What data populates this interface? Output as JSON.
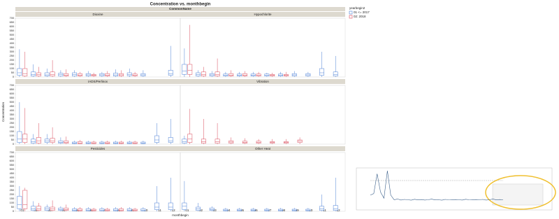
{
  "chart_data": [
    {
      "type": "box",
      "title": "Concentration vs. monthbegin",
      "header": "CommonName",
      "x_label": "monthbegin",
      "y_label": "Concentration",
      "categories": [
        "01",
        "02",
        "03",
        "04",
        "05",
        "06",
        "07",
        "08",
        "09",
        "10",
        "11",
        "12"
      ],
      "ylim": [
        0,
        700
      ],
      "yticks": [
        0,
        50,
        100,
        150,
        200,
        250,
        300,
        350,
        400,
        450,
        500,
        550,
        600,
        650,
        700
      ],
      "legend_title": "yearbegin2",
      "series": [
        {
          "name": "01 <= 2017",
          "color": "#4a7fd6"
        },
        {
          "name": "02: 2018",
          "color": "#d94a5a"
        }
      ],
      "panels": [
        {
          "title": "Dioxine",
          "series": [
            {
              "values": [
                [
                  0,
                  20,
                  50,
                  100,
                  330
                ],
                [
                  0,
                  10,
                  30,
                  60,
                  150
                ],
                [
                  0,
                  10,
                  25,
                  50,
                  100
                ],
                [
                  0,
                  10,
                  30,
                  45,
                  80
                ],
                [
                  0,
                  10,
                  30,
                  50,
                  80
                ],
                [
                  0,
                  10,
                  25,
                  40,
                  70
                ],
                [
                  0,
                  10,
                  25,
                  40,
                  60
                ],
                [
                  0,
                  10,
                  25,
                  45,
                  90
                ],
                [
                  0,
                  15,
                  30,
                  50,
                  100
                ],
                [
                  0,
                  10,
                  25,
                  40,
                  80
                ],
                null,
                [
                  0,
                  20,
                  40,
                  80,
                  370
                ]
              ]
            },
            {
              "values": [
                [
                  0,
                  10,
                  40,
                  100,
                  300
                ],
                [
                  0,
                  10,
                  30,
                  50,
                  120
                ],
                [
                  0,
                  10,
                  30,
                  60,
                  200
                ],
                [
                  0,
                  10,
                  20,
                  40,
                  90
                ],
                [
                  0,
                  10,
                  20,
                  40,
                  60
                ],
                [
                  0,
                  10,
                  20,
                  30,
                  50
                ],
                [
                  0,
                  10,
                  20,
                  40,
                  70
                ],
                [
                  0,
                  10,
                  25,
                  40,
                  80
                ],
                [
                  0,
                  10,
                  20,
                  35,
                  60
                ],
                null,
                null,
                null
              ]
            }
          ]
        },
        {
          "title": "Hypochlorite",
          "series": [
            {
              "values": [
                [
                  0,
                  30,
                  70,
                  150,
                  340
                ],
                [
                  0,
                  10,
                  30,
                  50,
                  80
                ],
                [
                  0,
                  10,
                  25,
                  40,
                  70
                ],
                [
                  0,
                  10,
                  20,
                  35,
                  60
                ],
                [
                  0,
                  10,
                  20,
                  35,
                  60
                ],
                [
                  0,
                  10,
                  20,
                  35,
                  60
                ],
                [
                  0,
                  10,
                  20,
                  35,
                  50
                ],
                [
                  0,
                  10,
                  20,
                  35,
                  60
                ],
                [
                  0,
                  10,
                  25,
                  40,
                  70
                ],
                [
                  0,
                  10,
                  25,
                  40,
                  60
                ],
                [
                  0,
                  20,
                  50,
                  100,
                  300
                ],
                [
                  0,
                  10,
                  30,
                  60,
                  250
                ]
              ]
            },
            {
              "values": [
                [
                  0,
                  30,
                  80,
                  150,
                  620
                ],
                [
                  0,
                  10,
                  30,
                  60,
                  120
                ],
                [
                  0,
                  10,
                  30,
                  60,
                  220
                ],
                [
                  0,
                  10,
                  20,
                  40,
                  80
                ],
                [
                  0,
                  10,
                  20,
                  40,
                  70
                ],
                [
                  0,
                  10,
                  20,
                  35,
                  60
                ],
                [
                  0,
                  10,
                  20,
                  30,
                  50
                ],
                [
                  0,
                  10,
                  20,
                  30,
                  60
                ],
                null,
                null,
                null,
                null
              ]
            }
          ]
        },
        {
          "title": "IADS/Perlinox",
          "series": [
            {
              "values": [
                [
                  0,
                  20,
                  60,
                  150,
                  500
                ],
                [
                  0,
                  10,
                  30,
                  60,
                  120
                ],
                [
                  0,
                  20,
                  40,
                  60,
                  120
                ],
                [
                  0,
                  10,
                  20,
                  40,
                  80
                ],
                [
                  0,
                  5,
                  15,
                  25,
                  40
                ],
                [
                  0,
                  5,
                  15,
                  25,
                  40
                ],
                [
                  0,
                  5,
                  15,
                  25,
                  40
                ],
                [
                  0,
                  5,
                  15,
                  25,
                  40
                ],
                [
                  0,
                  5,
                  15,
                  25,
                  40
                ],
                [
                  0,
                  5,
                  15,
                  25,
                  40
                ],
                [
                  0,
                  20,
                  50,
                  100,
                  250
                ],
                [
                  0,
                  20,
                  40,
                  80,
                  300
                ]
              ]
            },
            {
              "values": [
                [
                  0,
                  20,
                  60,
                  120,
                  430
                ],
                [
                  0,
                  10,
                  40,
                  80,
                  250
                ],
                [
                  0,
                  20,
                  40,
                  70,
                  200
                ],
                [
                  0,
                  10,
                  20,
                  40,
                  90
                ],
                [
                  0,
                  5,
                  15,
                  30,
                  50
                ],
                [
                  0,
                  5,
                  15,
                  25,
                  40
                ],
                [
                  0,
                  5,
                  15,
                  25,
                  40
                ],
                [
                  0,
                  5,
                  15,
                  25,
                  40
                ],
                [
                  0,
                  5,
                  15,
                  25,
                  40
                ],
                null,
                null,
                null
              ]
            }
          ]
        },
        {
          "title": "Vibration",
          "series": [
            {
              "values": [
                [
                  0,
                  10,
                  30,
                  60,
                  100
                ],
                null,
                null,
                null,
                null,
                null,
                null,
                null,
                null,
                null,
                null,
                null
              ]
            },
            {
              "values": [
                [
                  0,
                  20,
                  60,
                  120,
                  420
                ],
                [
                  0,
                  10,
                  30,
                  60,
                  300
                ],
                [
                  0,
                  10,
                  30,
                  60,
                  250
                ],
                [
                  0,
                  10,
                  25,
                  40,
                  80
                ],
                [
                  0,
                  10,
                  20,
                  35,
                  70
                ],
                [
                  0,
                  10,
                  20,
                  35,
                  60
                ],
                [
                  0,
                  10,
                  20,
                  30,
                  60
                ],
                [
                  0,
                  10,
                  20,
                  30,
                  60
                ],
                [
                  0,
                  20,
                  35,
                  50,
                  80
                ],
                null,
                null,
                null
              ]
            }
          ]
        },
        {
          "title": "Pesticides",
          "series": [
            {
              "values": [
                [
                  0,
                  30,
                  80,
                  180,
                  300
                ],
                [
                  0,
                  10,
                  30,
                  60,
                  120
                ],
                [
                  0,
                  10,
                  30,
                  50,
                  80
                ],
                [
                  0,
                  10,
                  20,
                  40,
                  60
                ],
                [
                  0,
                  5,
                  15,
                  30,
                  50
                ],
                [
                  0,
                  5,
                  15,
                  30,
                  50
                ],
                [
                  0,
                  5,
                  15,
                  30,
                  50
                ],
                [
                  0,
                  5,
                  15,
                  30,
                  50
                ],
                [
                  0,
                  5,
                  15,
                  30,
                  50
                ],
                [
                  0,
                  5,
                  15,
                  30,
                  50
                ],
                [
                  0,
                  20,
                  50,
                  100,
                  300
                ],
                [
                  0,
                  20,
                  50,
                  100,
                  400
                ]
              ]
            },
            {
              "values": [
                [
                  0,
                  30,
                  80,
                  250,
                  280
                ],
                [
                  0,
                  10,
                  30,
                  60,
                  100
                ],
                [
                  0,
                  10,
                  30,
                  50,
                  130
                ],
                [
                  0,
                  10,
                  20,
                  40,
                  80
                ],
                [
                  0,
                  5,
                  15,
                  30,
                  50
                ],
                [
                  0,
                  5,
                  15,
                  25,
                  40
                ],
                [
                  0,
                  5,
                  15,
                  25,
                  40
                ],
                [
                  0,
                  5,
                  15,
                  30,
                  50
                ],
                [
                  0,
                  5,
                  15,
                  25,
                  40
                ],
                null,
                null,
                null
              ]
            }
          ]
        },
        {
          "title": "Other Heat",
          "series": [
            {
              "values": [
                [
                  0,
                  20,
                  60,
                  100,
                  360
                ],
                [
                  0,
                  10,
                  30,
                  50,
                  100
                ],
                [
                  0,
                  10,
                  20,
                  40,
                  60
                ],
                [
                  0,
                  5,
                  15,
                  25,
                  40
                ],
                [
                  0,
                  5,
                  15,
                  25,
                  40
                ],
                [
                  0,
                  5,
                  15,
                  25,
                  40
                ],
                [
                  0,
                  5,
                  15,
                  25,
                  40
                ],
                [
                  0,
                  5,
                  15,
                  25,
                  40
                ],
                [
                  0,
                  5,
                  15,
                  25,
                  40
                ],
                [
                  0,
                  5,
                  15,
                  25,
                  40
                ],
                [
                  0,
                  10,
                  30,
                  60,
                  200
                ],
                [
                  0,
                  10,
                  30,
                  70,
                  400
                ]
              ]
            },
            {
              "values": [
                null,
                null,
                null,
                null,
                null,
                null,
                null,
                null,
                null,
                null,
                null,
                null
              ]
            }
          ]
        }
      ]
    },
    {
      "type": "line",
      "color": "#3a5f8a",
      "values": [
        60,
        70,
        200,
        80,
        40,
        220,
        60,
        30,
        35,
        28,
        32,
        30,
        27,
        33,
        29,
        31,
        28,
        30,
        34,
        29,
        30,
        27,
        32,
        30,
        29,
        31,
        30,
        28,
        33,
        30,
        29,
        31,
        30,
        32,
        28,
        30,
        35,
        29,
        31,
        30
      ]
    }
  ]
}
